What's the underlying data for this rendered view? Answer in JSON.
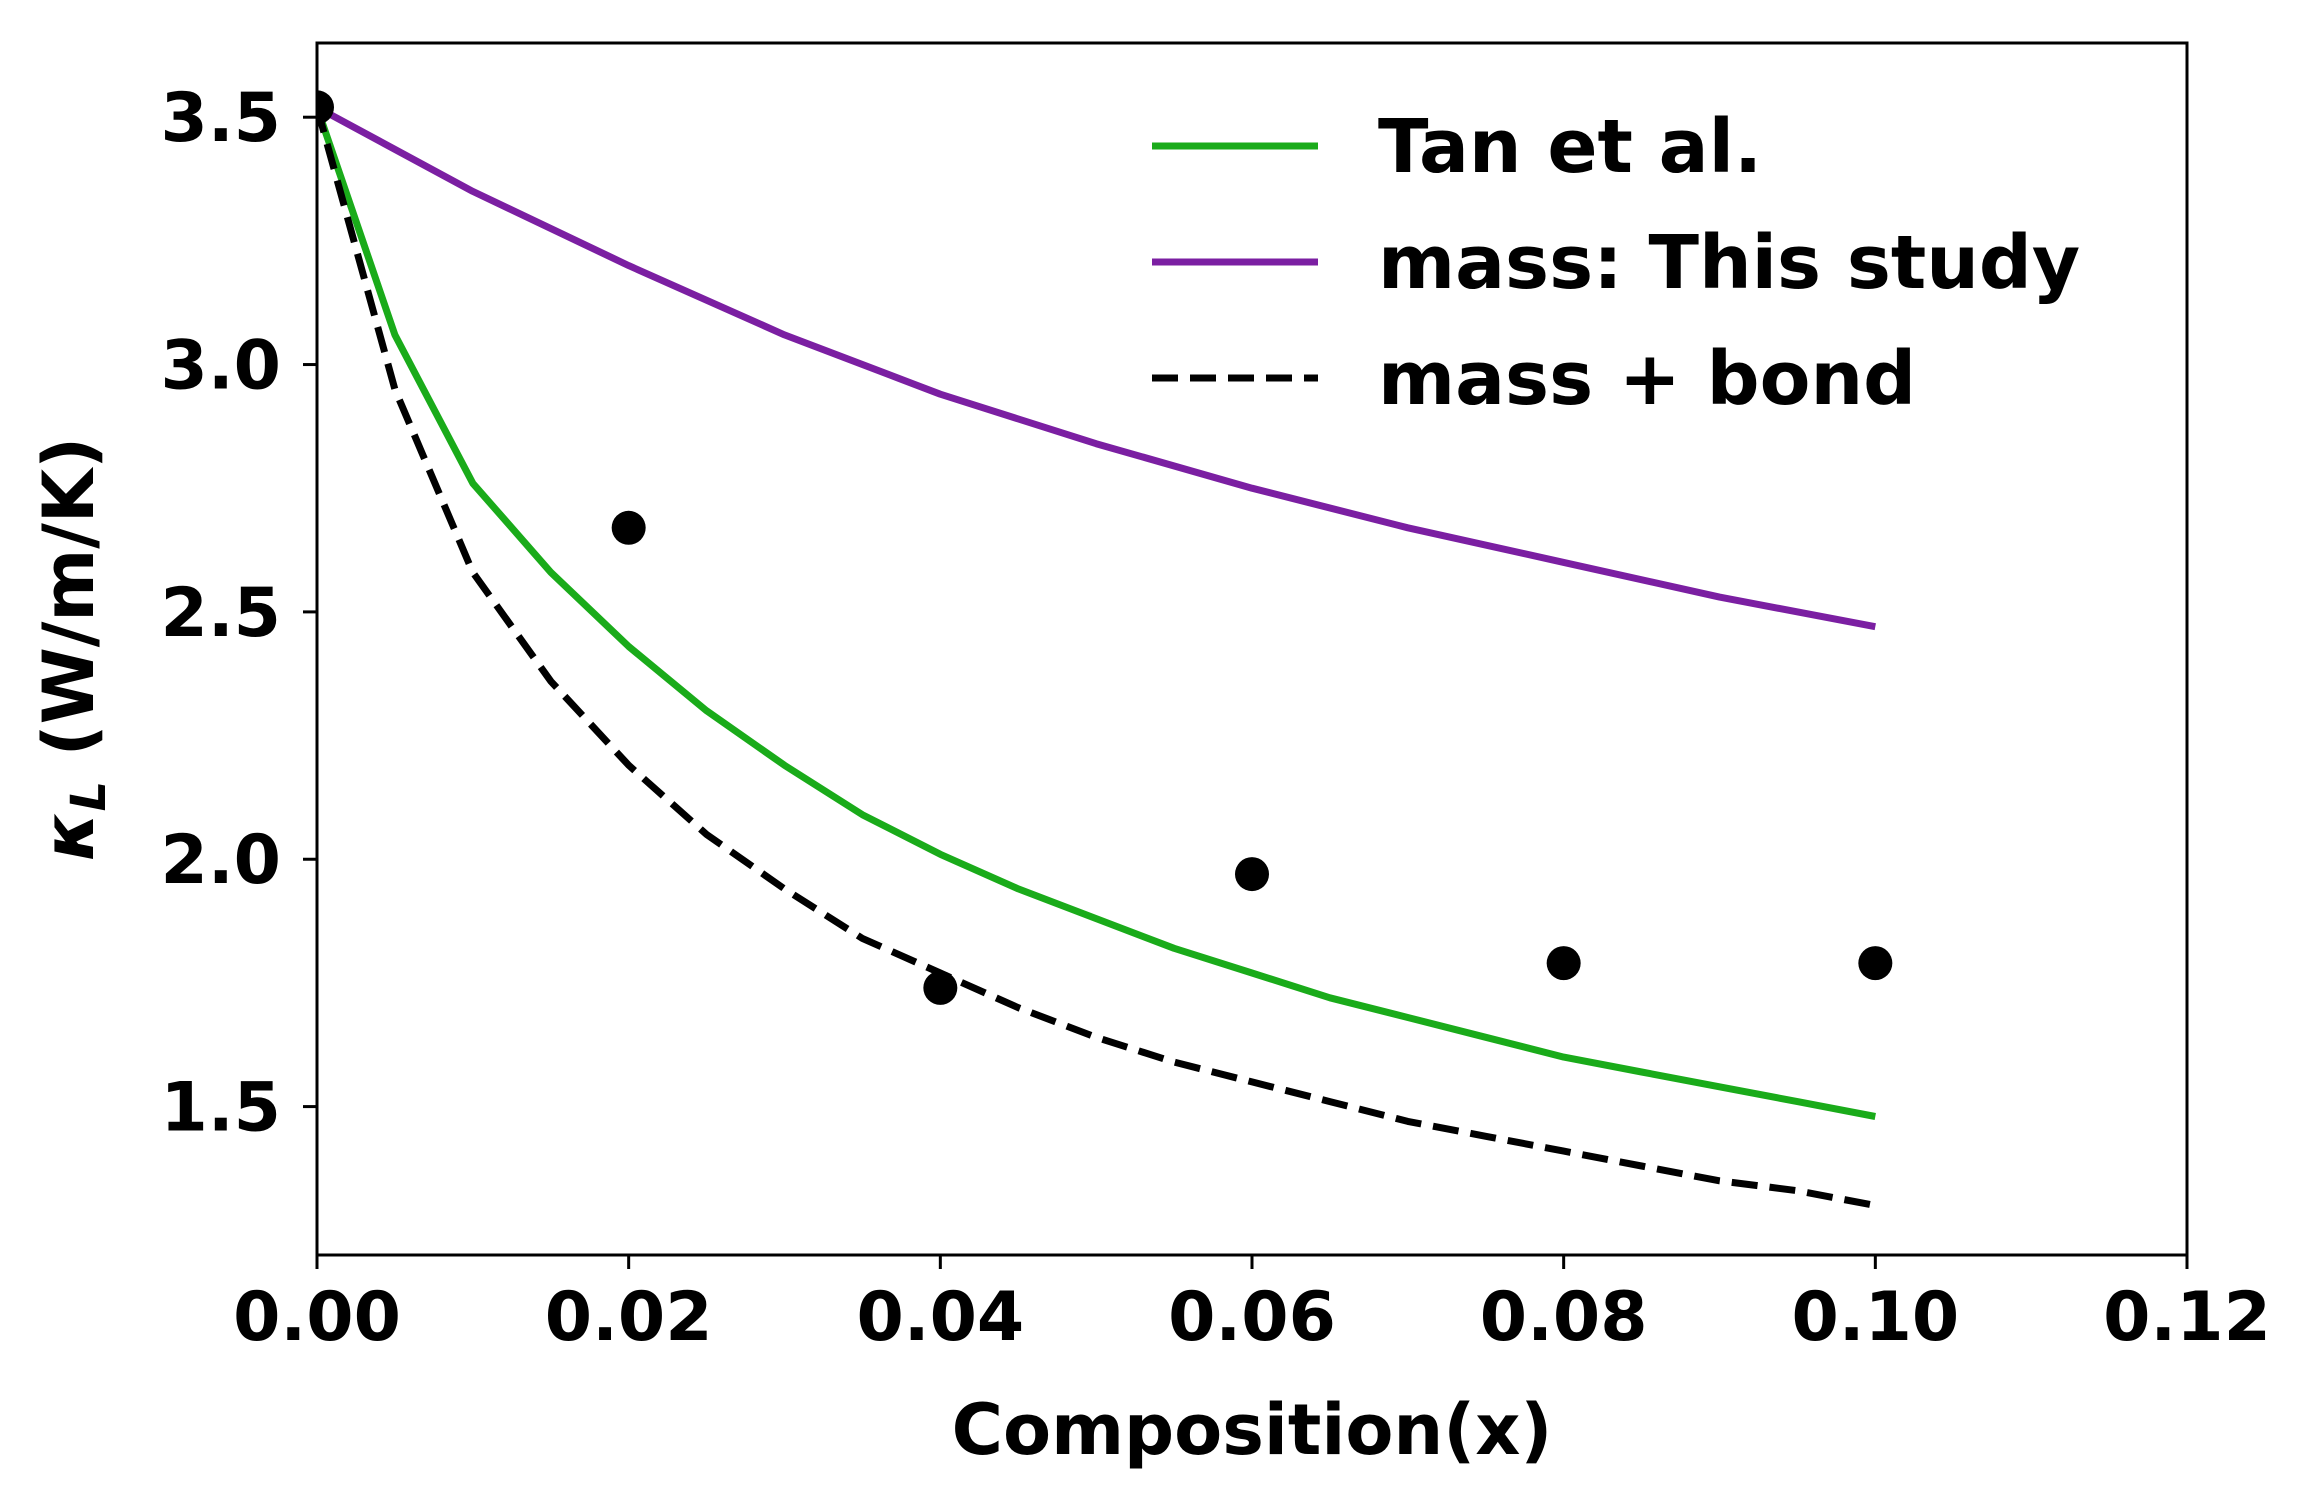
{
  "chart_data": {
    "type": "line",
    "title": "",
    "xlabel": "Composition(x)",
    "ylabel": {
      "symbol": "κ",
      "subscript": "L",
      "unit": " (W/m/K)"
    },
    "xlim": [
      0.0,
      0.12
    ],
    "ylim": [
      1.2,
      3.65
    ],
    "xticks": [
      0.0,
      0.02,
      0.04,
      0.06,
      0.08,
      0.1,
      0.12
    ],
    "xtick_labels": [
      "0.00",
      "0.02",
      "0.04",
      "0.06",
      "0.08",
      "0.10",
      "0.12"
    ],
    "yticks": [
      1.5,
      2.0,
      2.5,
      3.0,
      3.5
    ],
    "ytick_labels": [
      "1.5",
      "2.0",
      "2.5",
      "3.0",
      "3.5"
    ],
    "grid": false,
    "legend_position": "top-right",
    "series": [
      {
        "name": "Tan et al.",
        "style": "line",
        "color": "#1aab1a",
        "x": [
          0.0,
          0.005,
          0.01,
          0.015,
          0.02,
          0.025,
          0.03,
          0.035,
          0.04,
          0.045,
          0.05,
          0.055,
          0.06,
          0.065,
          0.07,
          0.075,
          0.08,
          0.085,
          0.09,
          0.095,
          0.1
        ],
        "y": [
          3.52,
          3.06,
          2.76,
          2.58,
          2.43,
          2.3,
          2.19,
          2.09,
          2.01,
          1.94,
          1.88,
          1.82,
          1.77,
          1.72,
          1.68,
          1.64,
          1.6,
          1.57,
          1.54,
          1.51,
          1.48
        ]
      },
      {
        "name": "mass: This study",
        "style": "line",
        "color": "#7b1fa2",
        "x": [
          0.0,
          0.01,
          0.02,
          0.03,
          0.04,
          0.05,
          0.06,
          0.07,
          0.08,
          0.09,
          0.1
        ],
        "y": [
          3.52,
          3.35,
          3.2,
          3.06,
          2.94,
          2.84,
          2.75,
          2.67,
          2.6,
          2.53,
          2.47
        ]
      },
      {
        "name": "mass + bond",
        "style": "dashed",
        "color": "#000000",
        "x": [
          0.0,
          0.005,
          0.01,
          0.015,
          0.02,
          0.025,
          0.03,
          0.035,
          0.04,
          0.045,
          0.05,
          0.055,
          0.06,
          0.065,
          0.07,
          0.075,
          0.08,
          0.085,
          0.09,
          0.095,
          0.1
        ],
        "y": [
          3.52,
          2.95,
          2.58,
          2.36,
          2.19,
          2.05,
          1.94,
          1.84,
          1.77,
          1.7,
          1.64,
          1.59,
          1.55,
          1.51,
          1.47,
          1.44,
          1.41,
          1.38,
          1.35,
          1.33,
          1.3
        ]
      },
      {
        "name": "",
        "style": "scatter",
        "color": "#000000",
        "x": [
          0.0,
          0.02,
          0.04,
          0.06,
          0.08,
          0.1
        ],
        "y": [
          3.52,
          2.67,
          1.74,
          1.97,
          1.79,
          1.79
        ]
      }
    ]
  }
}
